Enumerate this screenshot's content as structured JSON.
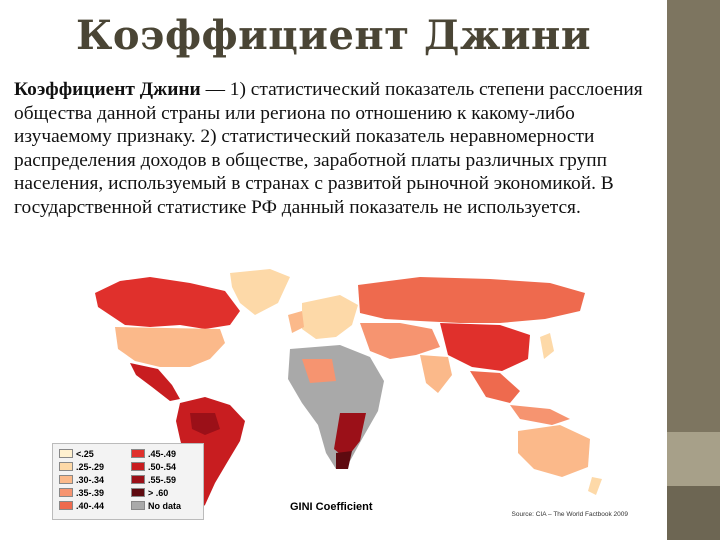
{
  "slide": {
    "title": "Коэффициент Джини",
    "definition_term": "Коэффициент Джини",
    "definition_text": " — 1) статистический показатель степени расслоения общества данной страны или региона по отношению к какому-либо изучаемому признаку. 2) статистический показатель неравномерности распределения доходов в обществе, заработной платы различных групп населения, используемый в странах с развитой рыночной экономикой. В государственной статистике РФ данный показатель не используется."
  },
  "map": {
    "caption": "GINI Coefficient",
    "source": "Source: CIA – The World Factbook 2009",
    "legend": [
      {
        "label": "<.25",
        "color": "#fff1d0"
      },
      {
        "label": ".25-.29",
        "color": "#fdd9a8"
      },
      {
        "label": ".30-.34",
        "color": "#fbb98a"
      },
      {
        "label": ".35-.39",
        "color": "#f69470"
      },
      {
        "label": ".40-.44",
        "color": "#ee6a4e"
      },
      {
        "label": ".45-.49",
        "color": "#e0302c"
      },
      {
        "label": ".50-.54",
        "color": "#c81d20"
      },
      {
        "label": ".55-.59",
        "color": "#9b1018"
      },
      {
        "label": "> .60",
        "color": "#5e0a10"
      },
      {
        "label": "No data",
        "color": "#a9a9a9"
      }
    ]
  }
}
